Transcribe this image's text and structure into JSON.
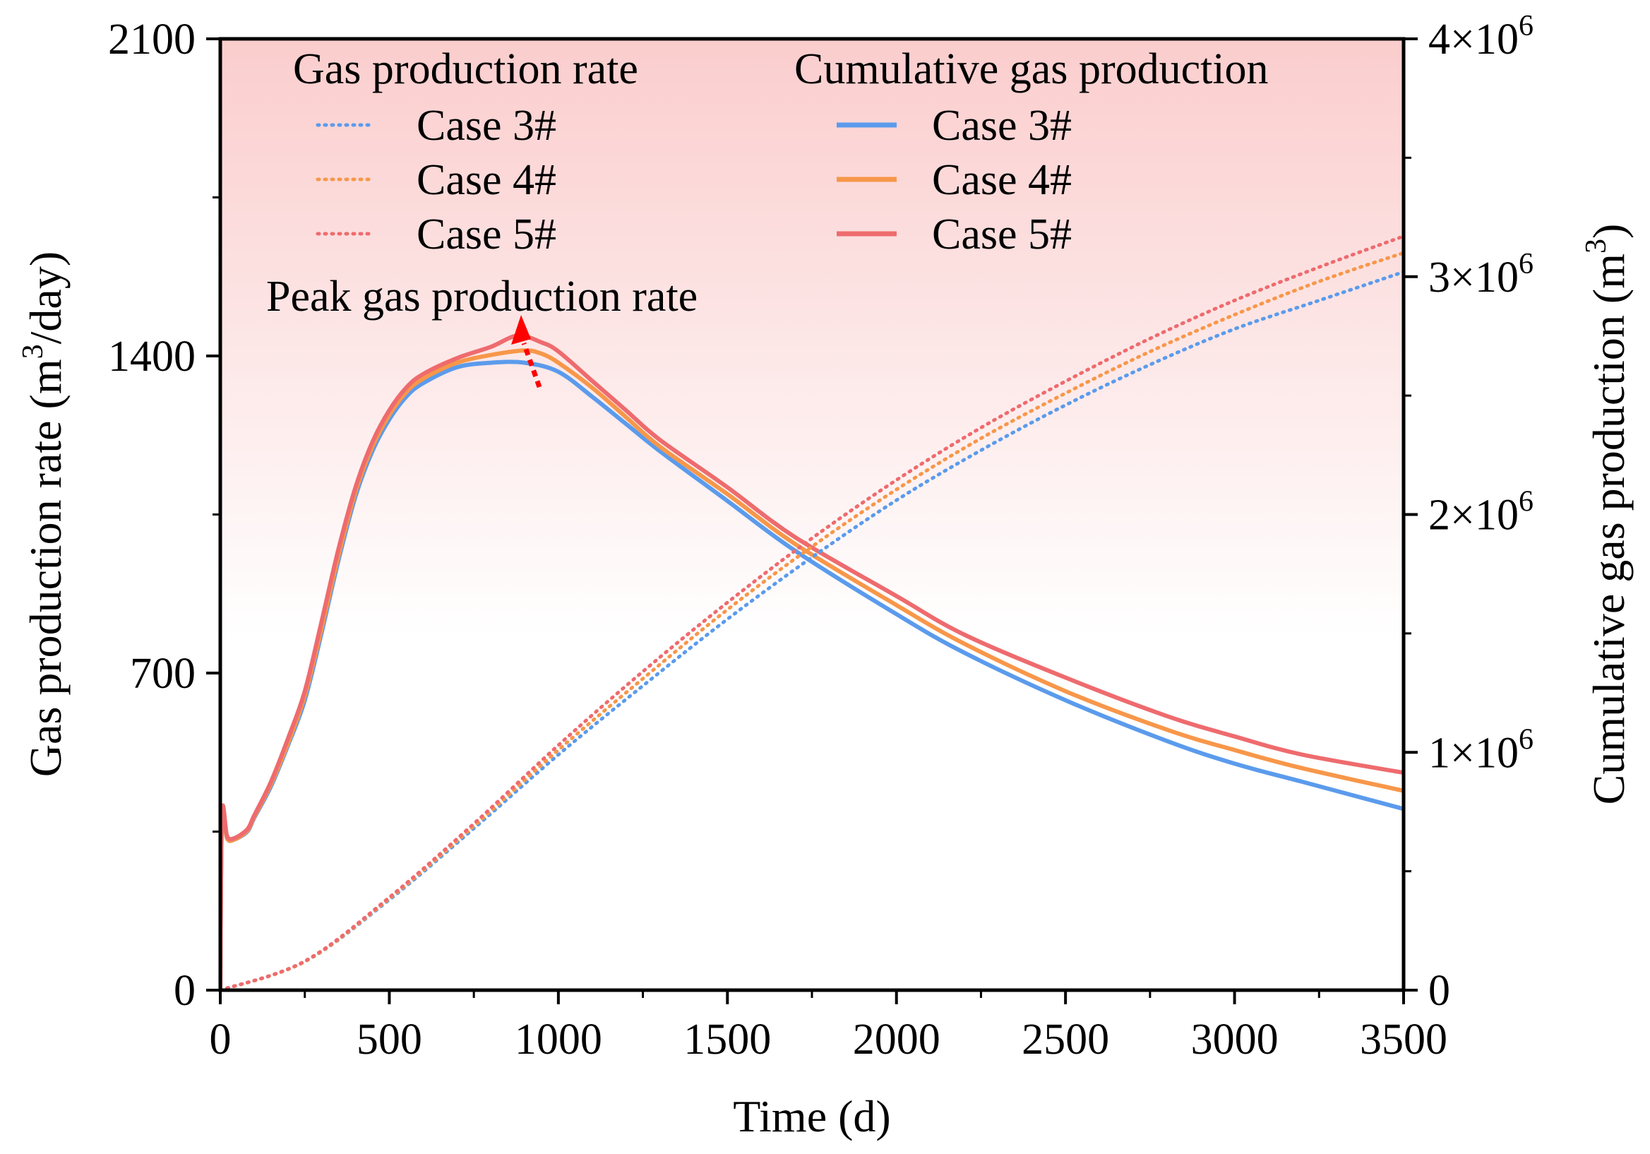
{
  "colors": {
    "case3": "#5b9bec",
    "case4": "#f7974a",
    "case5": "#ee6b6e",
    "background_top": "#fbcdcd",
    "background_bottom": "#ffffff",
    "arrow": "#ff0000",
    "axis": "#000000"
  },
  "chart_data": {
    "type": "line",
    "x": {
      "label": "Time (d)",
      "range": [
        0,
        3500
      ],
      "ticks": [
        0,
        500,
        1000,
        1500,
        2000,
        2500,
        3000,
        3500
      ],
      "tick_labels": [
        "0",
        "500",
        "1000",
        "1500",
        "2000",
        "2500",
        "3000",
        "3500"
      ]
    },
    "y_left": {
      "label_prefix": "Gas production rate (m",
      "label_sup": "3",
      "label_suffix": "/day)",
      "range": [
        0,
        2100
      ],
      "ticks": [
        0,
        700,
        1400,
        2100
      ],
      "tick_labels": [
        "0",
        "700",
        "1400",
        "2100"
      ]
    },
    "y_right": {
      "label_prefix": "Cumulative gas production (m",
      "label_sup": "3",
      "label_suffix": ")",
      "range": [
        0,
        4000000
      ],
      "ticks": [
        0,
        1000000,
        2000000,
        3000000,
        4000000
      ],
      "tick_labels": [
        {
          "base": "0",
          "exp": ""
        },
        {
          "base": "1×10",
          "exp": "6"
        },
        {
          "base": "2×10",
          "exp": "6"
        },
        {
          "base": "3×10",
          "exp": "6"
        },
        {
          "base": "4×10",
          "exp": "6"
        }
      ]
    },
    "legend": {
      "rate_title": "Gas production rate",
      "cumulative_title": "Cumulative gas production",
      "entries": [
        "Case 3#",
        "Case 4#",
        "Case 5#"
      ]
    },
    "annotation": "Peak gas production rate",
    "series": [
      {
        "name": "Case 3#",
        "kind": "rate",
        "axis": "left",
        "style": "solid",
        "color_key": "case3",
        "points": [
          [
            0,
            0
          ],
          [
            5,
            380
          ],
          [
            20,
            335
          ],
          [
            40,
            332
          ],
          [
            80,
            350
          ],
          [
            100,
            380
          ],
          [
            150,
            450
          ],
          [
            200,
            540
          ],
          [
            250,
            640
          ],
          [
            300,
            790
          ],
          [
            350,
            950
          ],
          [
            400,
            1090
          ],
          [
            450,
            1190
          ],
          [
            500,
            1260
          ],
          [
            550,
            1310
          ],
          [
            600,
            1340
          ],
          [
            700,
            1375
          ],
          [
            800,
            1385
          ],
          [
            900,
            1385
          ],
          [
            1000,
            1365
          ],
          [
            1100,
            1310
          ],
          [
            1200,
            1250
          ],
          [
            1300,
            1190
          ],
          [
            1500,
            1080
          ],
          [
            1700,
            970
          ],
          [
            2000,
            830
          ],
          [
            2200,
            745
          ],
          [
            2500,
            640
          ],
          [
            2800,
            550
          ],
          [
            3000,
            500
          ],
          [
            3200,
            460
          ],
          [
            3500,
            400
          ]
        ]
      },
      {
        "name": "Case 4#",
        "kind": "rate",
        "axis": "left",
        "style": "solid",
        "color_key": "case4",
        "points": [
          [
            0,
            0
          ],
          [
            5,
            380
          ],
          [
            20,
            335
          ],
          [
            40,
            332
          ],
          [
            80,
            352
          ],
          [
            100,
            382
          ],
          [
            150,
            455
          ],
          [
            200,
            545
          ],
          [
            250,
            650
          ],
          [
            300,
            800
          ],
          [
            350,
            960
          ],
          [
            400,
            1100
          ],
          [
            450,
            1200
          ],
          [
            500,
            1270
          ],
          [
            550,
            1320
          ],
          [
            600,
            1350
          ],
          [
            700,
            1385
          ],
          [
            800,
            1402
          ],
          [
            900,
            1412
          ],
          [
            950,
            1405
          ],
          [
            1000,
            1385
          ],
          [
            1100,
            1330
          ],
          [
            1200,
            1265
          ],
          [
            1300,
            1200
          ],
          [
            1500,
            1095
          ],
          [
            1700,
            985
          ],
          [
            2000,
            850
          ],
          [
            2200,
            765
          ],
          [
            2500,
            660
          ],
          [
            2800,
            575
          ],
          [
            3000,
            530
          ],
          [
            3200,
            490
          ],
          [
            3500,
            440
          ]
        ]
      },
      {
        "name": "Case 5#",
        "kind": "rate",
        "axis": "left",
        "style": "solid",
        "color_key": "case5",
        "points": [
          [
            0,
            0
          ],
          [
            5,
            390
          ],
          [
            20,
            340
          ],
          [
            40,
            335
          ],
          [
            80,
            355
          ],
          [
            100,
            385
          ],
          [
            150,
            460
          ],
          [
            200,
            555
          ],
          [
            250,
            660
          ],
          [
            300,
            815
          ],
          [
            350,
            975
          ],
          [
            400,
            1110
          ],
          [
            450,
            1210
          ],
          [
            500,
            1280
          ],
          [
            550,
            1330
          ],
          [
            600,
            1360
          ],
          [
            700,
            1395
          ],
          [
            800,
            1420
          ],
          [
            880,
            1445
          ],
          [
            950,
            1430
          ],
          [
            1000,
            1410
          ],
          [
            1100,
            1345
          ],
          [
            1200,
            1280
          ],
          [
            1300,
            1215
          ],
          [
            1500,
            1110
          ],
          [
            1700,
            1000
          ],
          [
            2000,
            870
          ],
          [
            2200,
            785
          ],
          [
            2500,
            690
          ],
          [
            2800,
            605
          ],
          [
            3000,
            560
          ],
          [
            3200,
            520
          ],
          [
            3500,
            480
          ]
        ]
      },
      {
        "name": "Case 3#",
        "kind": "cumulative",
        "axis": "right",
        "style": "dotted",
        "color_key": "case3",
        "points": [
          [
            0,
            0
          ],
          [
            250,
            120000
          ],
          [
            500,
            380000
          ],
          [
            750,
            680000
          ],
          [
            1000,
            990000
          ],
          [
            1250,
            1280000
          ],
          [
            1500,
            1560000
          ],
          [
            1750,
            1820000
          ],
          [
            2000,
            2060000
          ],
          [
            2250,
            2270000
          ],
          [
            2500,
            2460000
          ],
          [
            2750,
            2630000
          ],
          [
            3000,
            2780000
          ],
          [
            3250,
            2900000
          ],
          [
            3500,
            3020000
          ]
        ]
      },
      {
        "name": "Case 4#",
        "kind": "cumulative",
        "axis": "right",
        "style": "dotted",
        "color_key": "case4",
        "points": [
          [
            0,
            0
          ],
          [
            250,
            120000
          ],
          [
            500,
            385000
          ],
          [
            750,
            690000
          ],
          [
            1000,
            1010000
          ],
          [
            1250,
            1310000
          ],
          [
            1500,
            1600000
          ],
          [
            1750,
            1865000
          ],
          [
            2000,
            2105000
          ],
          [
            2250,
            2320000
          ],
          [
            2500,
            2510000
          ],
          [
            2750,
            2685000
          ],
          [
            3000,
            2840000
          ],
          [
            3250,
            2980000
          ],
          [
            3500,
            3100000
          ]
        ]
      },
      {
        "name": "Case 5#",
        "kind": "cumulative",
        "axis": "right",
        "style": "dotted",
        "color_key": "case5",
        "points": [
          [
            0,
            0
          ],
          [
            250,
            122000
          ],
          [
            500,
            390000
          ],
          [
            750,
            700000
          ],
          [
            1000,
            1030000
          ],
          [
            1250,
            1340000
          ],
          [
            1500,
            1630000
          ],
          [
            1750,
            1900000
          ],
          [
            2000,
            2145000
          ],
          [
            2250,
            2365000
          ],
          [
            2500,
            2560000
          ],
          [
            2750,
            2740000
          ],
          [
            3000,
            2900000
          ],
          [
            3250,
            3040000
          ],
          [
            3500,
            3170000
          ]
        ]
      }
    ]
  }
}
